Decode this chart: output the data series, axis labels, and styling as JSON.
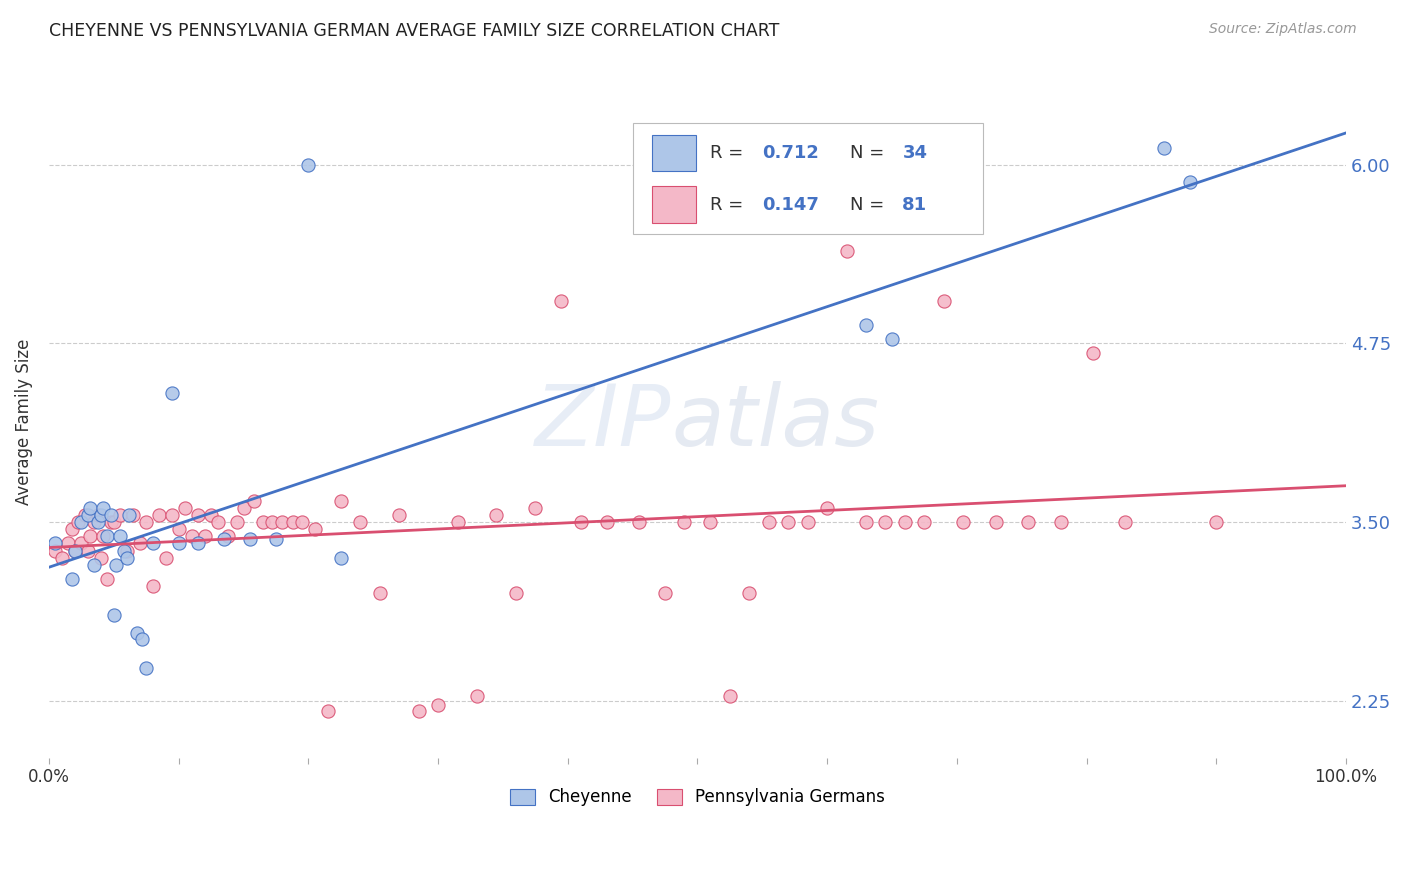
{
  "title": "CHEYENNE VS PENNSYLVANIA GERMAN AVERAGE FAMILY SIZE CORRELATION CHART",
  "source": "Source: ZipAtlas.com",
  "ylabel": "Average Family Size",
  "yticks": [
    2.25,
    3.5,
    4.75,
    6.0
  ],
  "cheyenne_color": "#aec6e8",
  "penn_color": "#f4b8c8",
  "trend_cheyenne_color": "#4472c4",
  "trend_penn_color": "#d94f70",
  "watermark": "ZIPatlas",
  "cheyenne_x": [
    0.005,
    0.018,
    0.02,
    0.025,
    0.03,
    0.032,
    0.035,
    0.038,
    0.04,
    0.042,
    0.045,
    0.048,
    0.05,
    0.052,
    0.055,
    0.058,
    0.06,
    0.062,
    0.068,
    0.072,
    0.075,
    0.08,
    0.095,
    0.1,
    0.115,
    0.135,
    0.155,
    0.175,
    0.2,
    0.225,
    0.63,
    0.65,
    0.86,
    0.88
  ],
  "cheyenne_y": [
    3.35,
    3.1,
    3.3,
    3.5,
    3.55,
    3.6,
    3.2,
    3.5,
    3.55,
    3.6,
    3.4,
    3.55,
    2.85,
    3.2,
    3.4,
    3.3,
    3.25,
    3.55,
    2.72,
    2.68,
    2.48,
    3.35,
    4.4,
    3.35,
    3.35,
    3.38,
    3.38,
    3.38,
    6.0,
    3.25,
    4.88,
    4.78,
    6.12,
    5.88
  ],
  "penn_x": [
    0.005,
    0.01,
    0.015,
    0.018,
    0.02,
    0.022,
    0.025,
    0.028,
    0.03,
    0.032,
    0.035,
    0.038,
    0.04,
    0.042,
    0.045,
    0.048,
    0.05,
    0.055,
    0.06,
    0.065,
    0.07,
    0.075,
    0.08,
    0.085,
    0.09,
    0.095,
    0.1,
    0.105,
    0.11,
    0.115,
    0.12,
    0.125,
    0.13,
    0.138,
    0.145,
    0.15,
    0.158,
    0.165,
    0.172,
    0.18,
    0.188,
    0.195,
    0.205,
    0.215,
    0.225,
    0.24,
    0.255,
    0.27,
    0.285,
    0.3,
    0.315,
    0.33,
    0.345,
    0.36,
    0.375,
    0.395,
    0.41,
    0.43,
    0.455,
    0.475,
    0.49,
    0.51,
    0.525,
    0.54,
    0.555,
    0.57,
    0.585,
    0.6,
    0.615,
    0.63,
    0.645,
    0.66,
    0.675,
    0.69,
    0.705,
    0.73,
    0.755,
    0.78,
    0.805,
    0.83,
    0.9
  ],
  "penn_y": [
    3.3,
    3.25,
    3.35,
    3.45,
    3.3,
    3.5,
    3.35,
    3.55,
    3.3,
    3.4,
    3.5,
    3.55,
    3.25,
    3.4,
    3.1,
    3.5,
    3.5,
    3.55,
    3.3,
    3.55,
    3.35,
    3.5,
    3.05,
    3.55,
    3.25,
    3.55,
    3.45,
    3.6,
    3.4,
    3.55,
    3.4,
    3.55,
    3.5,
    3.4,
    3.5,
    3.6,
    3.65,
    3.5,
    3.5,
    3.5,
    3.5,
    3.5,
    3.45,
    2.18,
    3.65,
    3.5,
    3.0,
    3.55,
    2.18,
    2.22,
    3.5,
    2.28,
    3.55,
    3.0,
    3.6,
    5.05,
    3.5,
    3.5,
    3.5,
    3.0,
    3.5,
    3.5,
    2.28,
    3.0,
    3.5,
    3.5,
    3.5,
    3.6,
    5.4,
    3.5,
    3.5,
    3.5,
    3.5,
    5.05,
    3.5,
    3.5,
    3.5,
    3.5,
    4.68,
    3.5,
    3.5
  ],
  "background_color": "#ffffff",
  "grid_color": "#cccccc"
}
